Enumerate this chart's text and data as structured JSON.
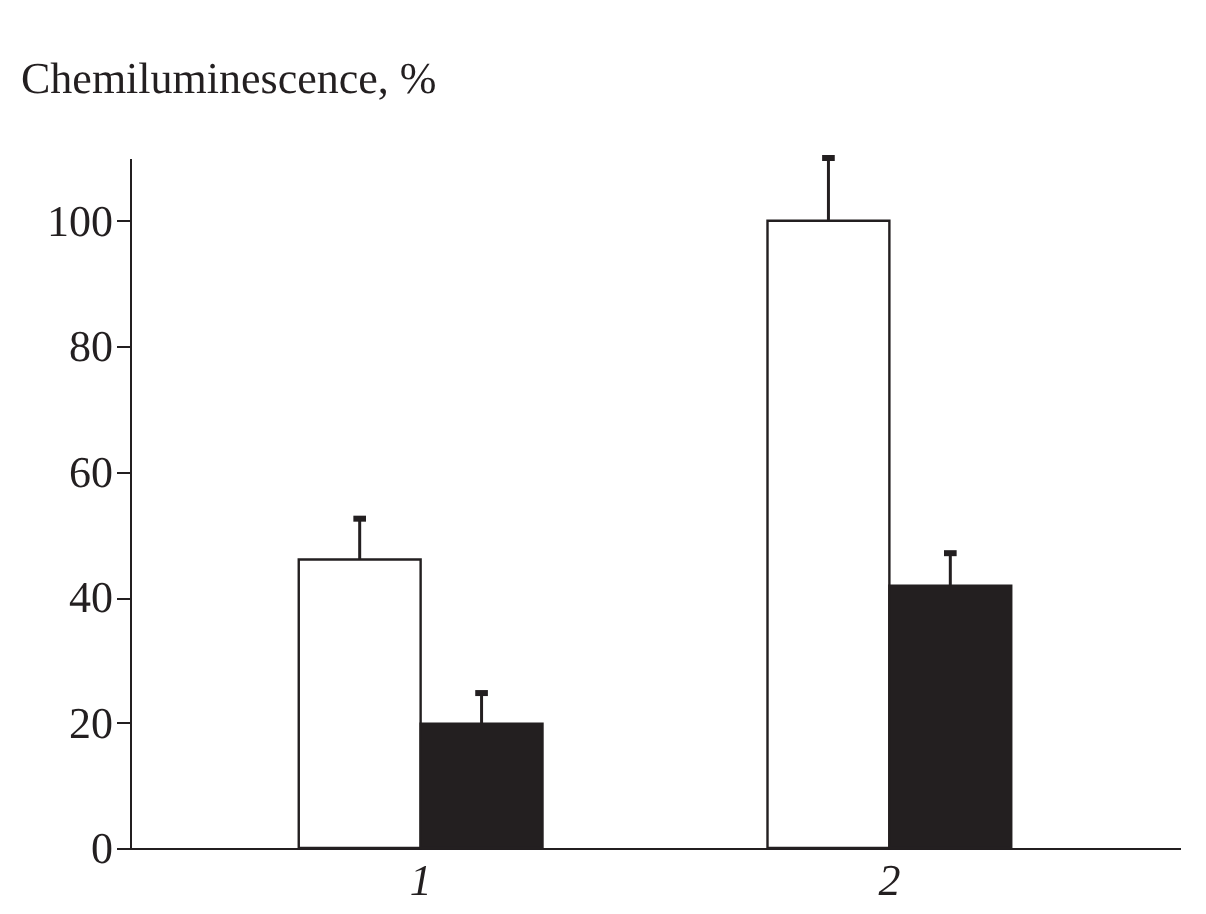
{
  "chart_data": {
    "type": "bar",
    "ylabel": "Chemiluminescence, %",
    "categories": [
      "1",
      "2"
    ],
    "series": [
      {
        "color": "#ffffff",
        "values": [
          46,
          100
        ],
        "errors": [
          [
            46,
            52.5
          ],
          [
            100,
            110
          ]
        ]
      },
      {
        "color": "#231f20",
        "values": [
          19.8,
          41.8
        ],
        "errors": [
          [
            19.8,
            24.7
          ],
          [
            41.8,
            47
          ]
        ]
      }
    ],
    "ylim": [
      0,
      110
    ],
    "yticks": [
      0,
      20,
      40,
      60,
      80,
      100
    ],
    "grid": false,
    "legend": false
  }
}
